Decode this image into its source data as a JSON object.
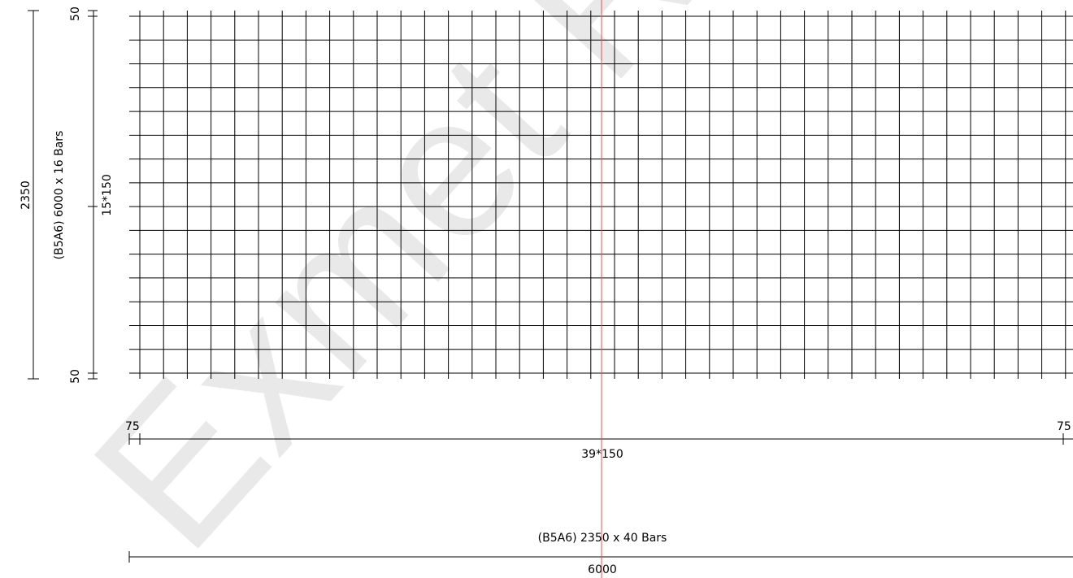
{
  "watermark": {
    "text": "Exmet RS"
  },
  "mesh": {
    "horizontal_bar_count": 16,
    "vertical_bar_count": 40,
    "horizontal_pitch_label": "39*150",
    "vertical_pitch_label": "15*150"
  },
  "dimensions": {
    "overall_height": "2350",
    "horizontal_bars_label": "(B5A6) 6000 x 16 Bars",
    "top_end": "50",
    "bottom_end": "50",
    "left_end": "75",
    "right_end": "75",
    "vertical_bars_label": "(B5A6) 2350 x 40 Bars",
    "overall_length": "6000"
  },
  "colors": {
    "mesh": "#000000",
    "dimension": "#000000",
    "cursor_line": "#e8505b",
    "watermark": "#e9e9e9"
  }
}
